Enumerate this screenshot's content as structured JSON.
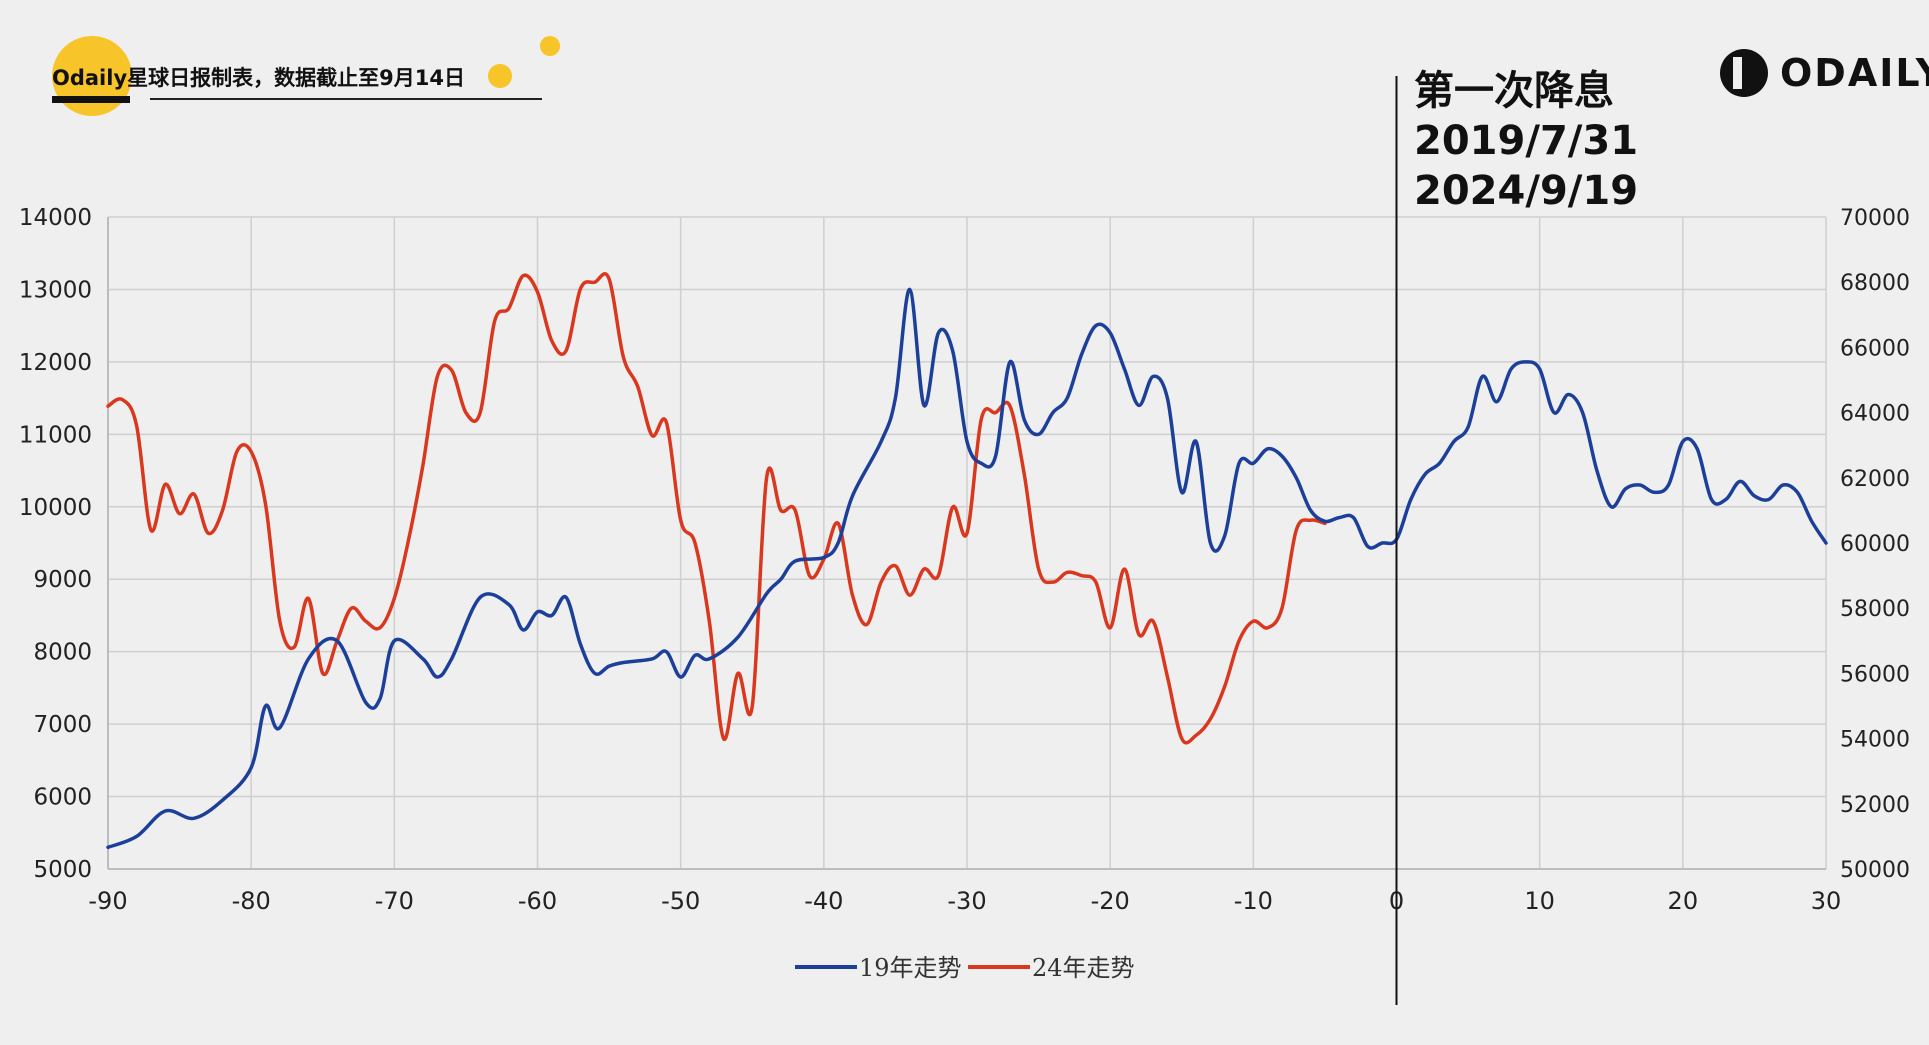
{
  "source_note": "Odaily星球日报制表，数据截止至9月14日",
  "logo": {
    "text": "ODAILY",
    "icon": "odaily-logo-icon"
  },
  "annotation": {
    "title": "第一次降息",
    "date_2019": "2019/7/31",
    "date_2024": "2024/9/19"
  },
  "colors": {
    "series_2019": "#1c3f99",
    "series_2024": "#d9381e",
    "accent_yellow": "#f7c42a",
    "background": "#efefef"
  },
  "chart_data": {
    "type": "line",
    "title": "",
    "xlabel": "",
    "ylabel": "",
    "xlim": [
      -90,
      30
    ],
    "ylim": [
      5000,
      14000
    ],
    "y2lim": [
      50000,
      70000
    ],
    "x_ticks": [
      "-90",
      "-80",
      "-70",
      "-60",
      "-50",
      "-40",
      "-30",
      "-20",
      "-10",
      "0",
      "10",
      "20",
      "30"
    ],
    "y_ticks": [
      "14000",
      "13000",
      "12000",
      "11000",
      "10000",
      "9000",
      "8000",
      "7000",
      "6000",
      "5000"
    ],
    "y2_ticks": [
      "70000",
      "68000",
      "66000",
      "64000",
      "62000",
      "60000",
      "58000",
      "56000",
      "54000",
      "52000",
      "50000"
    ],
    "grid": true,
    "legend_position": "bottom-center",
    "event_marker_x": 0,
    "series": [
      {
        "name": "19年走势",
        "axis": "left",
        "x": [
          -90,
          -88,
          -86,
          -84,
          -82,
          -80,
          -79,
          -78,
          -76,
          -74,
          -72,
          -71,
          -70,
          -68,
          -67,
          -66,
          -64,
          -62,
          -61,
          -60,
          -59,
          -58,
          -57,
          -56,
          -55,
          -54,
          -52,
          -51,
          -50,
          -49,
          -48,
          -46,
          -44,
          -43,
          -42,
          -40,
          -39,
          -38,
          -36,
          -35,
          -34,
          -33,
          -32,
          -31,
          -30,
          -29,
          -28,
          -27,
          -26,
          -25,
          -24,
          -23,
          -22,
          -21,
          -20,
          -19,
          -18,
          -17,
          -16,
          -15,
          -14,
          -13,
          -12,
          -11,
          -10,
          -9,
          -8,
          -7,
          -6,
          -5,
          -4,
          -3,
          -2,
          -1,
          0,
          1,
          2,
          3,
          4,
          5,
          6,
          7,
          8,
          9,
          10,
          11,
          12,
          13,
          14,
          15,
          16,
          17,
          18,
          19,
          20,
          21,
          22,
          23,
          24,
          25,
          26,
          27,
          28,
          29,
          30
        ],
        "values": [
          5300,
          5450,
          5800,
          5700,
          5950,
          6400,
          7250,
          6950,
          7900,
          8150,
          7300,
          7350,
          8150,
          7900,
          7650,
          7900,
          8750,
          8650,
          8300,
          8550,
          8500,
          8750,
          8100,
          7700,
          7800,
          7850,
          7900,
          8000,
          7650,
          7950,
          7900,
          8200,
          8800,
          9000,
          9250,
          9300,
          9500,
          10150,
          10900,
          11500,
          13000,
          11400,
          12400,
          12150,
          10900,
          10600,
          10700,
          12000,
          11200,
          11000,
          11300,
          11500,
          12100,
          12500,
          12400,
          11900,
          11400,
          11800,
          11500,
          10200,
          10900,
          9500,
          9600,
          10600,
          10600,
          10800,
          10700,
          10400,
          9950,
          9800,
          9850,
          9850,
          9450,
          9500,
          9550,
          10100,
          10450,
          10600,
          10900,
          11100,
          11800,
          11450,
          11900,
          12000,
          11900,
          11300,
          11550,
          11300,
          10500,
          10000,
          10250,
          10300,
          10200,
          10300,
          10900,
          10800,
          10100,
          10100,
          10350,
          10150,
          10100,
          10300,
          10200,
          9800,
          9500
        ]
      },
      {
        "name": "24年走势",
        "axis": "right",
        "x": [
          -90,
          -89,
          -88,
          -87,
          -86,
          -85,
          -84,
          -83,
          -82,
          -81,
          -80,
          -79,
          -78,
          -77,
          -76,
          -75,
          -74,
          -73,
          -72,
          -71,
          -70,
          -69,
          -68,
          -67,
          -66,
          -65,
          -64,
          -63,
          -62,
          -61,
          -60,
          -59,
          -58,
          -57,
          -56,
          -55,
          -54,
          -53,
          -52,
          -51,
          -50,
          -49,
          -48,
          -47,
          -46,
          -45,
          -44,
          -43,
          -42,
          -41,
          -40,
          -39,
          -38,
          -37,
          -36,
          -35,
          -34,
          -33,
          -32,
          -31,
          -30,
          -29,
          -28,
          -27,
          -26,
          -25,
          -24,
          -23,
          -22,
          -21,
          -20,
          -19,
          -18,
          -17,
          -16,
          -15,
          -14,
          -13,
          -12,
          -11,
          -10,
          -9,
          -8,
          -7,
          -6,
          -5
        ],
        "values": [
          64200,
          64400,
          63600,
          60400,
          61800,
          60900,
          61500,
          60300,
          61000,
          62800,
          62800,
          61200,
          57600,
          56800,
          58300,
          56000,
          57000,
          58000,
          57600,
          57400,
          58300,
          60100,
          62400,
          65100,
          65300,
          64000,
          64000,
          66800,
          67200,
          68200,
          67700,
          66200,
          65900,
          67800,
          68000,
          68100,
          65700,
          64800,
          63300,
          63700,
          60700,
          60000,
          57600,
          54000,
          56000,
          55000,
          62000,
          61000,
          61000,
          59000,
          59500,
          60600,
          58400,
          57500,
          58800,
          59300,
          58400,
          59200,
          59000,
          61100,
          60300,
          63800,
          64000,
          64200,
          62100,
          59200,
          58800,
          59100,
          59000,
          58800,
          57400,
          59200,
          57200,
          57600,
          55900,
          54000,
          54100,
          54600,
          55600,
          57000,
          57600,
          57400,
          58000,
          60400,
          60700,
          60600
        ]
      }
    ]
  }
}
